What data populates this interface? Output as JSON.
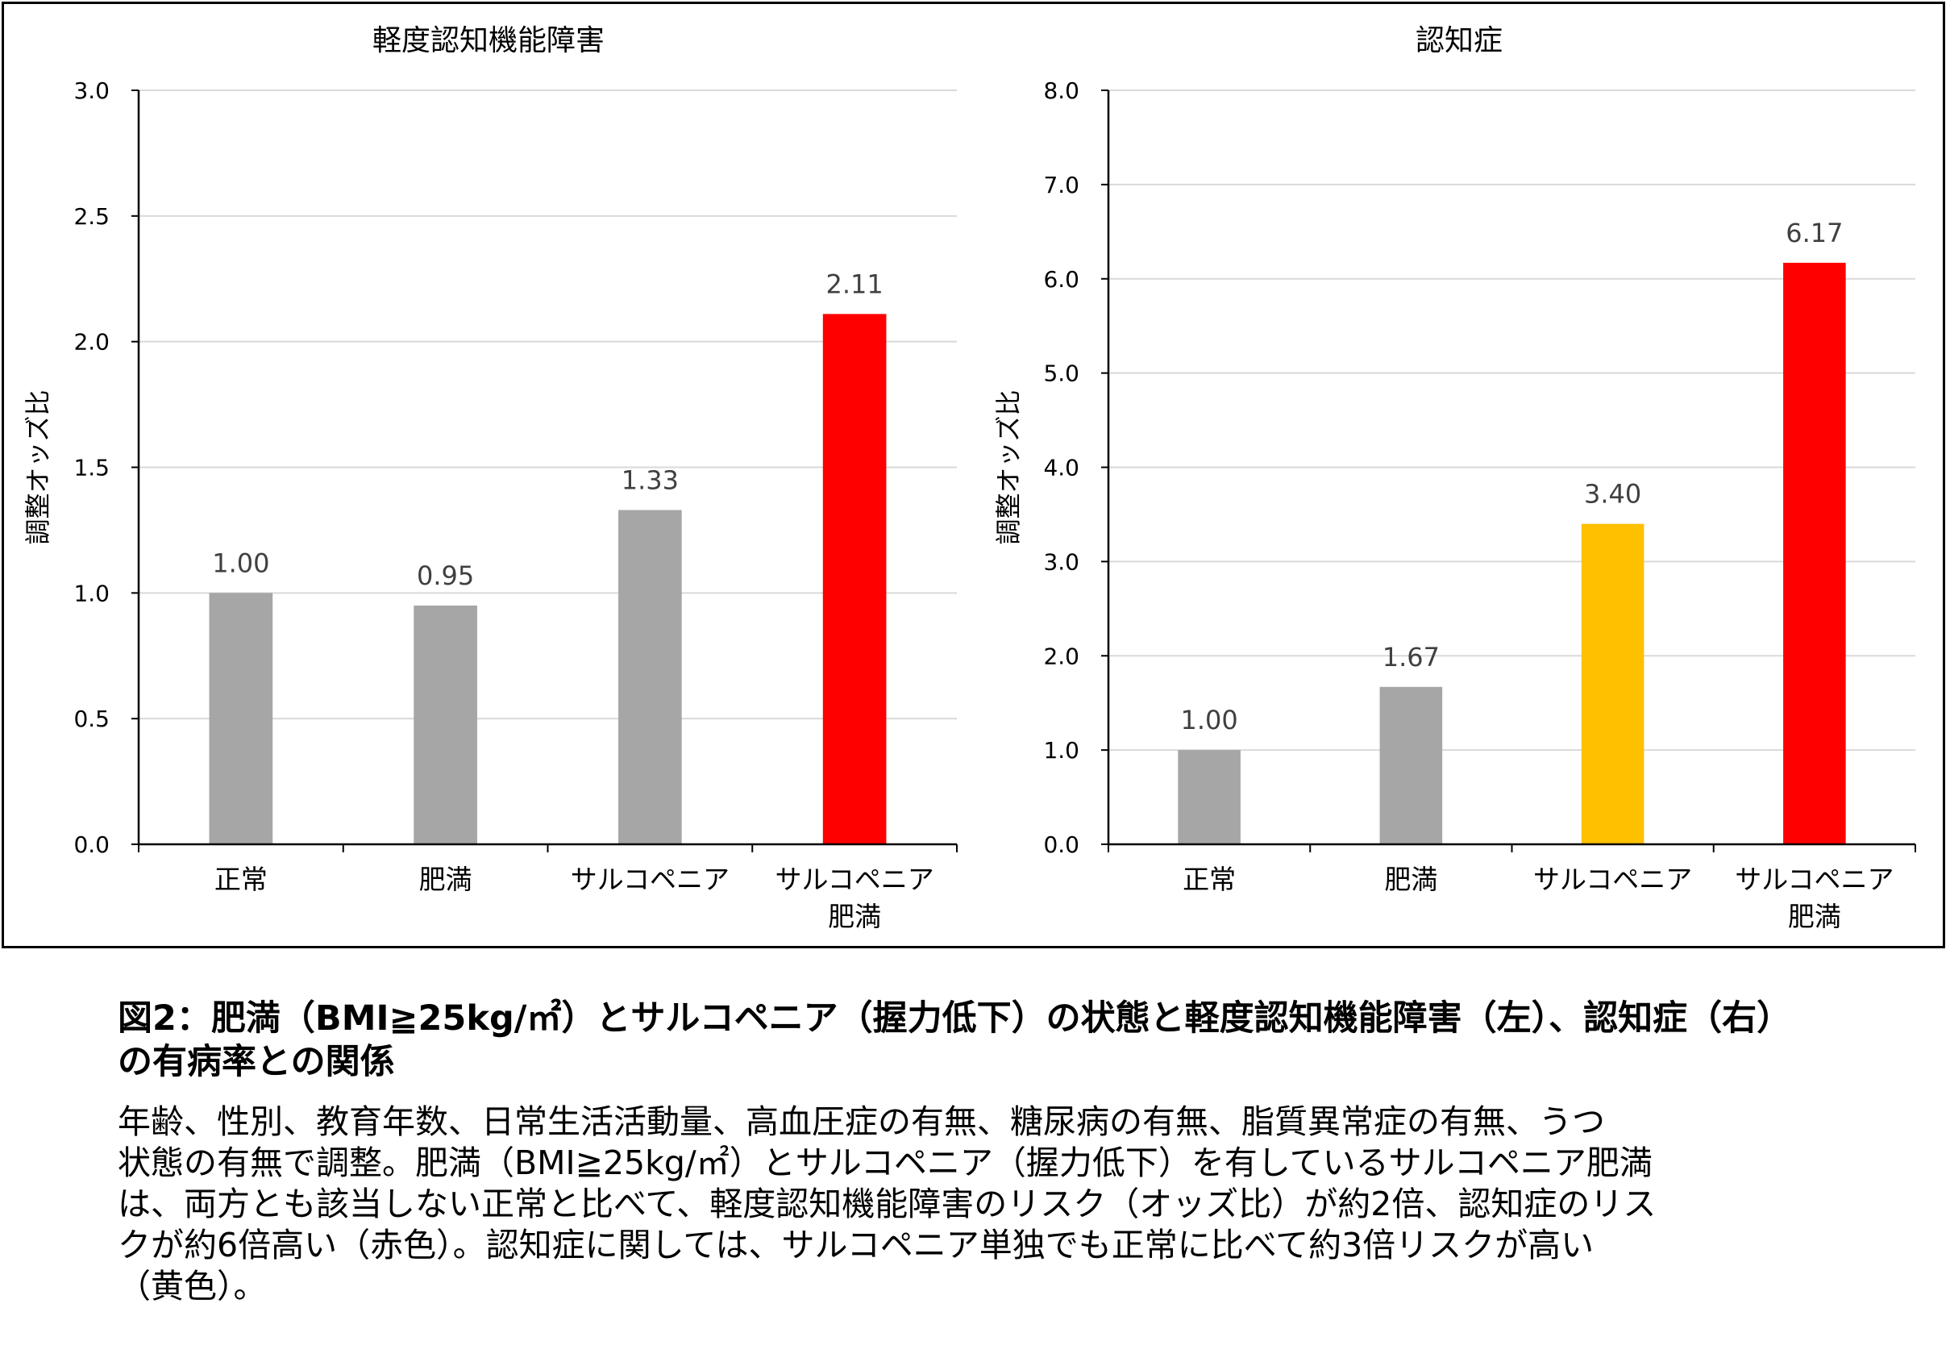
{
  "charts": [
    {
      "title": "軽度認知機能障害",
      "ylabel": "調整オッズ比",
      "ylim": [
        0,
        3.0
      ],
      "ticks": [
        "0.0",
        "0.5",
        "1.0",
        "1.5",
        "2.0",
        "2.5",
        "3.0"
      ],
      "tick_values": [
        0,
        0.5,
        1.0,
        1.5,
        2.0,
        2.5,
        3.0
      ],
      "categories": [
        [
          "正常"
        ],
        [
          "肥満"
        ],
        [
          "サルコペニア"
        ],
        [
          "サルコペニア",
          "肥満"
        ]
      ],
      "values": [
        1.0,
        0.95,
        1.33,
        2.11
      ],
      "value_labels": [
        "1.00",
        "0.95",
        "1.33",
        "2.11"
      ],
      "colors": [
        "#a6a6a6",
        "#a6a6a6",
        "#a6a6a6",
        "#ff0000"
      ]
    },
    {
      "title": "認知症",
      "ylabel": "調整オッズ比",
      "ylim": [
        0,
        8.0
      ],
      "ticks": [
        "0.0",
        "1.0",
        "2.0",
        "3.0",
        "4.0",
        "5.0",
        "6.0",
        "7.0",
        "8.0"
      ],
      "tick_values": [
        0,
        1.0,
        2.0,
        3.0,
        4.0,
        5.0,
        6.0,
        7.0,
        8.0
      ],
      "categories": [
        [
          "正常"
        ],
        [
          "肥満"
        ],
        [
          "サルコペニア"
        ],
        [
          "サルコペニア",
          "肥満"
        ]
      ],
      "values": [
        1.0,
        1.67,
        3.4,
        6.17
      ],
      "value_labels": [
        "1.00",
        "1.67",
        "3.40",
        "6.17"
      ],
      "colors": [
        "#a6a6a6",
        "#a6a6a6",
        "#ffc000",
        "#ff0000"
      ]
    }
  ],
  "chart_data": [
    {
      "type": "bar",
      "title": "軽度認知機能障害",
      "ylabel": "調整オッズ比",
      "categories": [
        "正常",
        "肥満",
        "サルコペニア",
        "サルコペニア肥満"
      ],
      "values": [
        1.0,
        0.95,
        1.33,
        2.11
      ],
      "ylim": [
        0,
        3.0
      ],
      "grid": true
    },
    {
      "type": "bar",
      "title": "認知症",
      "ylabel": "調整オッズ比",
      "categories": [
        "正常",
        "肥満",
        "サルコペニア",
        "サルコペニア肥満"
      ],
      "values": [
        1.0,
        1.67,
        3.4,
        6.17
      ],
      "ylim": [
        0,
        8.0
      ],
      "grid": true
    }
  ],
  "caption": {
    "title_line1": "図2：肥満（BMI≧25kg/㎡）とサルコペニア（握力低下）の状態と軽度認知機能障害（左）、認知症（右）",
    "title_line2": "の有病率との関係",
    "body_lines": [
      "年齢、性別、教育年数、日常生活活動量、高血圧症の有無、糖尿病の有無、脂質異常症の有無、うつ",
      "状態の有無で調整。肥満（BMI≧25kg/㎡）とサルコペニア（握力低下）を有しているサルコペニア肥満",
      "は、両方とも該当しない正常と比べて、軽度認知機能障害のリスク（オッズ比）が約2倍、認知症のリス",
      "クが約6倍高い（赤色）。認知症に関しては、サルコペニア単独でも正常に比べて約3倍リスクが高い",
      "（黄色）。"
    ]
  }
}
